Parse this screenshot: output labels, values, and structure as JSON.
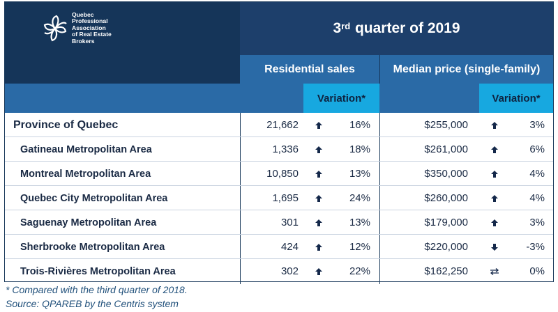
{
  "header": {
    "org_name_lines": [
      "Quebec",
      "Professional",
      "Association",
      "of Real Estate",
      "Brokers"
    ],
    "quarter_ordinal": "3",
    "quarter_suffix": "rd",
    "quarter_rest": " quarter of 2019"
  },
  "columns": {
    "sales": "Residential sales",
    "price": "Median price (single-family)",
    "variation": "Variation*"
  },
  "rows": [
    {
      "name": "Province of Quebec",
      "sales": "21,662",
      "sales_dir": "up",
      "sales_var": "16%",
      "price": "$255,000",
      "price_dir": "up",
      "price_var": "3%"
    },
    {
      "name": "Gatineau Metropolitan Area",
      "sales": "1,336",
      "sales_dir": "up",
      "sales_var": "18%",
      "price": "$261,000",
      "price_dir": "up",
      "price_var": "6%"
    },
    {
      "name": "Montreal Metropolitan Area",
      "sales": "10,850",
      "sales_dir": "up",
      "sales_var": "13%",
      "price": "$350,000",
      "price_dir": "up",
      "price_var": "4%"
    },
    {
      "name": "Quebec City Metropolitan Area",
      "sales": "1,695",
      "sales_dir": "up",
      "sales_var": "24%",
      "price": "$260,000",
      "price_dir": "up",
      "price_var": "4%"
    },
    {
      "name": "Saguenay Metropolitan Area",
      "sales": "301",
      "sales_dir": "up",
      "sales_var": "13%",
      "price": "$179,000",
      "price_dir": "up",
      "price_var": "3%"
    },
    {
      "name": "Sherbrooke Metropolitan Area",
      "sales": "424",
      "sales_dir": "up",
      "sales_var": "12%",
      "price": "$220,000",
      "price_dir": "down",
      "price_var": "-3%"
    },
    {
      "name": "Trois-Rivières Metropolitan Area",
      "sales": "302",
      "sales_dir": "up",
      "sales_var": "22%",
      "price": "$162,250",
      "price_dir": "flat",
      "price_var": "0%"
    }
  ],
  "footnotes": {
    "note": "* Compared with the third quarter of 2018.",
    "source": "Source: QPAREB by the Centris system"
  },
  "colors": {
    "navy": "#153559",
    "mid_blue": "#2a6aa6",
    "cyan": "#17a8e0"
  }
}
